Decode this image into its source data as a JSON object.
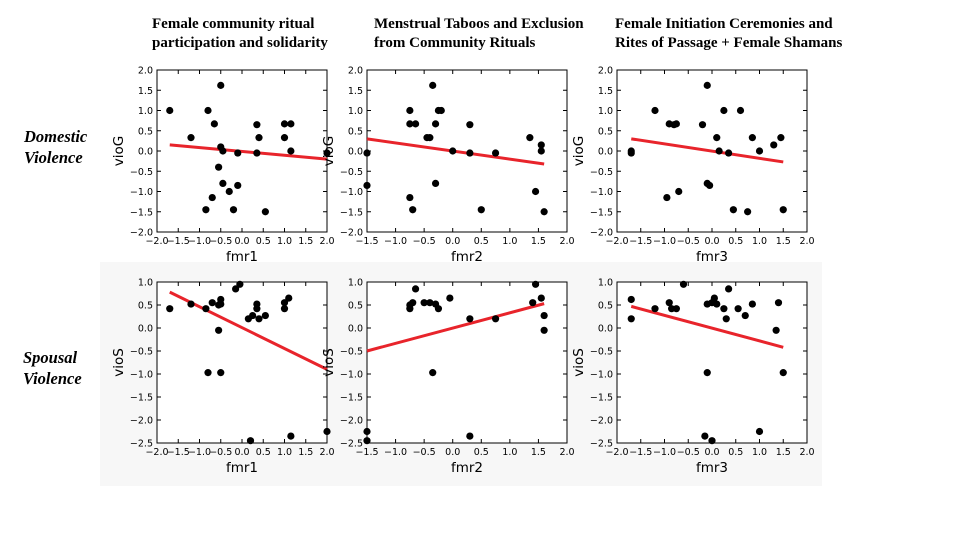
{
  "column_titles": [
    [
      "Female community ritual",
      "participation and solidarity"
    ],
    [
      "Menstrual Taboos and Exclusion",
      "from Community Rituals"
    ],
    [
      "Female Initiation Ceremonies and",
      "Rites of Passage + Female Shamans"
    ]
  ],
  "row_labels": [
    [
      "Domestic",
      "Violence"
    ],
    [
      "Spousal",
      "Violence"
    ]
  ],
  "colors": {
    "points": "#000000",
    "fit_line": "#e8242b",
    "axes": "#000000"
  },
  "chart_data": [
    {
      "type": "scatter",
      "xlabel": "fmr1",
      "ylabel": "vioG",
      "xlim": [
        -2.0,
        2.0
      ],
      "ylim": [
        -2.0,
        2.0
      ],
      "xticks": [
        "−2.0",
        "−1.5",
        "−1.0",
        "−0.5",
        "0.0",
        "0.5",
        "1.0",
        "1.5",
        "2.0"
      ],
      "yticks": [
        "2.0",
        "1.5",
        "1.0",
        "0.5",
        "0.0",
        "−0.5",
        "−1.0",
        "−1.5",
        "−2.0"
      ],
      "points": [
        [
          -1.7,
          1.0
        ],
        [
          -1.2,
          0.33
        ],
        [
          -0.8,
          1.0
        ],
        [
          -0.65,
          0.67
        ],
        [
          -0.5,
          1.62
        ],
        [
          -0.5,
          0.1
        ],
        [
          -0.45,
          0.0
        ],
        [
          -0.45,
          -0.8
        ],
        [
          -0.55,
          -0.4
        ],
        [
          -0.7,
          -1.15
        ],
        [
          -0.85,
          -1.45
        ],
        [
          -0.3,
          -1.0
        ],
        [
          -0.1,
          -0.85
        ],
        [
          -0.1,
          -0.05
        ],
        [
          -0.2,
          -1.45
        ],
        [
          0.35,
          0.65
        ],
        [
          0.4,
          0.33
        ],
        [
          0.35,
          -0.05
        ],
        [
          0.55,
          -1.5
        ],
        [
          1.0,
          0.67
        ],
        [
          1.0,
          0.33
        ],
        [
          1.15,
          0.67
        ],
        [
          1.15,
          0.0
        ],
        [
          2.0,
          -0.05
        ]
      ],
      "fit_line": [
        [
          -1.7,
          0.15
        ],
        [
          2.0,
          -0.2
        ]
      ]
    },
    {
      "type": "scatter",
      "xlabel": "fmr2",
      "ylabel": "vioG",
      "xlim": [
        -1.5,
        2.0
      ],
      "ylim": [
        -2.0,
        2.0
      ],
      "xticks": [
        "−1.5",
        "−1.0",
        "−0.5",
        "0.0",
        "0.5",
        "1.0",
        "1.5",
        "2.0"
      ],
      "yticks": [
        "2.0",
        "1.5",
        "1.0",
        "0.5",
        "0.0",
        "−0.5",
        "−1.0",
        "−1.5",
        "−2.0"
      ],
      "points": [
        [
          -1.5,
          -0.05
        ],
        [
          -1.5,
          -0.85
        ],
        [
          -0.75,
          1.0
        ],
        [
          -0.75,
          0.67
        ],
        [
          -0.65,
          0.67
        ],
        [
          -0.75,
          -1.15
        ],
        [
          -0.7,
          -1.45
        ],
        [
          -0.45,
          0.33
        ],
        [
          -0.4,
          0.33
        ],
        [
          -0.35,
          1.62
        ],
        [
          -0.25,
          1.0
        ],
        [
          -0.2,
          1.0
        ],
        [
          -0.3,
          0.67
        ],
        [
          -0.3,
          -0.8
        ],
        [
          0.0,
          0.0
        ],
        [
          0.3,
          0.65
        ],
        [
          0.3,
          -0.05
        ],
        [
          0.5,
          -1.45
        ],
        [
          0.75,
          -0.05
        ],
        [
          1.35,
          0.33
        ],
        [
          1.45,
          -1.0
        ],
        [
          1.55,
          0.15
        ],
        [
          1.55,
          0.0
        ],
        [
          1.6,
          -1.5
        ]
      ],
      "fit_line": [
        [
          -1.5,
          0.3
        ],
        [
          1.6,
          -0.32
        ]
      ]
    },
    {
      "type": "scatter",
      "xlabel": "fmr3",
      "ylabel": "vioG",
      "xlim": [
        -2.0,
        2.0
      ],
      "ylim": [
        -2.0,
        2.0
      ],
      "xticks": [
        "−2.0",
        "−1.5",
        "−1.0",
        "−0.5",
        "0.0",
        "0.5",
        "1.0",
        "1.5",
        "2.0"
      ],
      "yticks": [
        "2.0",
        "1.5",
        "1.0",
        "0.5",
        "0.0",
        "−0.5",
        "−1.0",
        "−1.5",
        "−2.0"
      ],
      "points": [
        [
          -1.7,
          -0.05
        ],
        [
          -1.7,
          0.0
        ],
        [
          -1.2,
          1.0
        ],
        [
          -0.9,
          0.67
        ],
        [
          -0.8,
          0.65
        ],
        [
          -0.75,
          0.67
        ],
        [
          -0.95,
          -1.15
        ],
        [
          -0.7,
          -1.0
        ],
        [
          -0.2,
          0.65
        ],
        [
          -0.1,
          1.62
        ],
        [
          -0.1,
          -0.8
        ],
        [
          -0.05,
          -0.85
        ],
        [
          0.1,
          0.33
        ],
        [
          0.15,
          0.0
        ],
        [
          0.25,
          1.0
        ],
        [
          0.35,
          -0.05
        ],
        [
          0.45,
          -1.45
        ],
        [
          0.6,
          1.0
        ],
        [
          0.75,
          -1.5
        ],
        [
          0.85,
          0.33
        ],
        [
          1.0,
          0.0
        ],
        [
          1.3,
          0.15
        ],
        [
          1.45,
          0.33
        ],
        [
          1.5,
          -1.45
        ]
      ],
      "fit_line": [
        [
          -1.7,
          0.3
        ],
        [
          1.5,
          -0.27
        ]
      ]
    },
    {
      "type": "scatter",
      "xlabel": "fmr1",
      "ylabel": "vioS",
      "xlim": [
        -2.0,
        2.0
      ],
      "ylim": [
        -2.5,
        1.0
      ],
      "xticks": [
        "−2.0",
        "−1.5",
        "−1.0",
        "−0.5",
        "0.0",
        "0.5",
        "1.0",
        "1.5",
        "2.0"
      ],
      "yticks": [
        "1.0",
        "0.5",
        "0.0",
        "−0.5",
        "−1.0",
        "−1.5",
        "−2.0",
        "−2.5"
      ],
      "points": [
        [
          -1.7,
          0.42
        ],
        [
          -1.2,
          0.52
        ],
        [
          -0.85,
          0.42
        ],
        [
          -0.7,
          0.55
        ],
        [
          -0.55,
          0.5
        ],
        [
          -0.5,
          0.62
        ],
        [
          -0.5,
          0.52
        ],
        [
          -0.55,
          -0.05
        ],
        [
          -0.8,
          -0.97
        ],
        [
          -0.5,
          -0.97
        ],
        [
          -0.15,
          0.85
        ],
        [
          -0.05,
          0.95
        ],
        [
          0.15,
          0.2
        ],
        [
          0.25,
          0.27
        ],
        [
          0.35,
          0.42
        ],
        [
          0.35,
          0.52
        ],
        [
          0.4,
          0.2
        ],
        [
          0.55,
          0.27
        ],
        [
          1.0,
          0.42
        ],
        [
          1.0,
          0.55
        ],
        [
          1.1,
          0.65
        ],
        [
          0.2,
          -2.45
        ],
        [
          1.15,
          -2.35
        ],
        [
          2.0,
          -2.25
        ]
      ],
      "fit_line": [
        [
          -1.7,
          0.78
        ],
        [
          2.0,
          -0.9
        ]
      ]
    },
    {
      "type": "scatter",
      "xlabel": "fmr2",
      "ylabel": "vioS",
      "xlim": [
        -1.5,
        2.0
      ],
      "ylim": [
        -2.5,
        1.0
      ],
      "xticks": [
        "−1.5",
        "−1.0",
        "−0.5",
        "0.0",
        "0.5",
        "1.0",
        "1.5",
        "2.0"
      ],
      "yticks": [
        "1.0",
        "0.5",
        "0.0",
        "−0.5",
        "−1.0",
        "−1.5",
        "−2.0",
        "−2.5"
      ],
      "points": [
        [
          -1.5,
          -2.25
        ],
        [
          -1.5,
          -2.45
        ],
        [
          -0.75,
          0.5
        ],
        [
          -0.75,
          0.42
        ],
        [
          -0.7,
          0.55
        ],
        [
          -0.65,
          0.85
        ],
        [
          -0.5,
          0.55
        ],
        [
          -0.4,
          0.55
        ],
        [
          -0.3,
          0.52
        ],
        [
          -0.25,
          0.42
        ],
        [
          -0.35,
          -0.97
        ],
        [
          -0.05,
          0.65
        ],
        [
          0.3,
          0.2
        ],
        [
          0.3,
          -2.35
        ],
        [
          0.75,
          0.2
        ],
        [
          1.4,
          0.55
        ],
        [
          1.45,
          0.95
        ],
        [
          1.55,
          0.65
        ],
        [
          1.6,
          0.27
        ],
        [
          1.6,
          -0.05
        ]
      ],
      "fit_line": [
        [
          -1.5,
          -0.5
        ],
        [
          1.6,
          0.53
        ]
      ]
    },
    {
      "type": "scatter",
      "xlabel": "fmr3",
      "ylabel": "vioS",
      "xlim": [
        -2.0,
        2.0
      ],
      "ylim": [
        -2.5,
        1.0
      ],
      "xticks": [
        "−2.0",
        "−1.5",
        "−1.0",
        "−0.5",
        "0.0",
        "0.5",
        "1.0",
        "1.5",
        "2.0"
      ],
      "yticks": [
        "1.0",
        "0.5",
        "0.0",
        "−0.5",
        "−1.0",
        "−1.5",
        "−2.0",
        "−2.5"
      ],
      "points": [
        [
          -1.7,
          0.62
        ],
        [
          -1.7,
          0.2
        ],
        [
          -1.2,
          0.42
        ],
        [
          -0.9,
          0.55
        ],
        [
          -0.85,
          0.42
        ],
        [
          -0.75,
          0.42
        ],
        [
          -0.6,
          0.95
        ],
        [
          -0.1,
          0.52
        ],
        [
          -0.1,
          -0.97
        ],
        [
          0.0,
          0.55
        ],
        [
          0.05,
          0.65
        ],
        [
          0.1,
          0.52
        ],
        [
          0.25,
          0.42
        ],
        [
          0.3,
          0.2
        ],
        [
          0.35,
          0.85
        ],
        [
          0.55,
          0.42
        ],
        [
          0.7,
          0.27
        ],
        [
          0.85,
          0.52
        ],
        [
          1.4,
          0.55
        ],
        [
          1.35,
          -0.05
        ],
        [
          1.5,
          -0.97
        ],
        [
          -0.15,
          -2.35
        ],
        [
          0.0,
          -2.45
        ],
        [
          1.0,
          -2.25
        ]
      ],
      "fit_line": [
        [
          -1.7,
          0.47
        ],
        [
          1.5,
          -0.42
        ]
      ]
    }
  ]
}
